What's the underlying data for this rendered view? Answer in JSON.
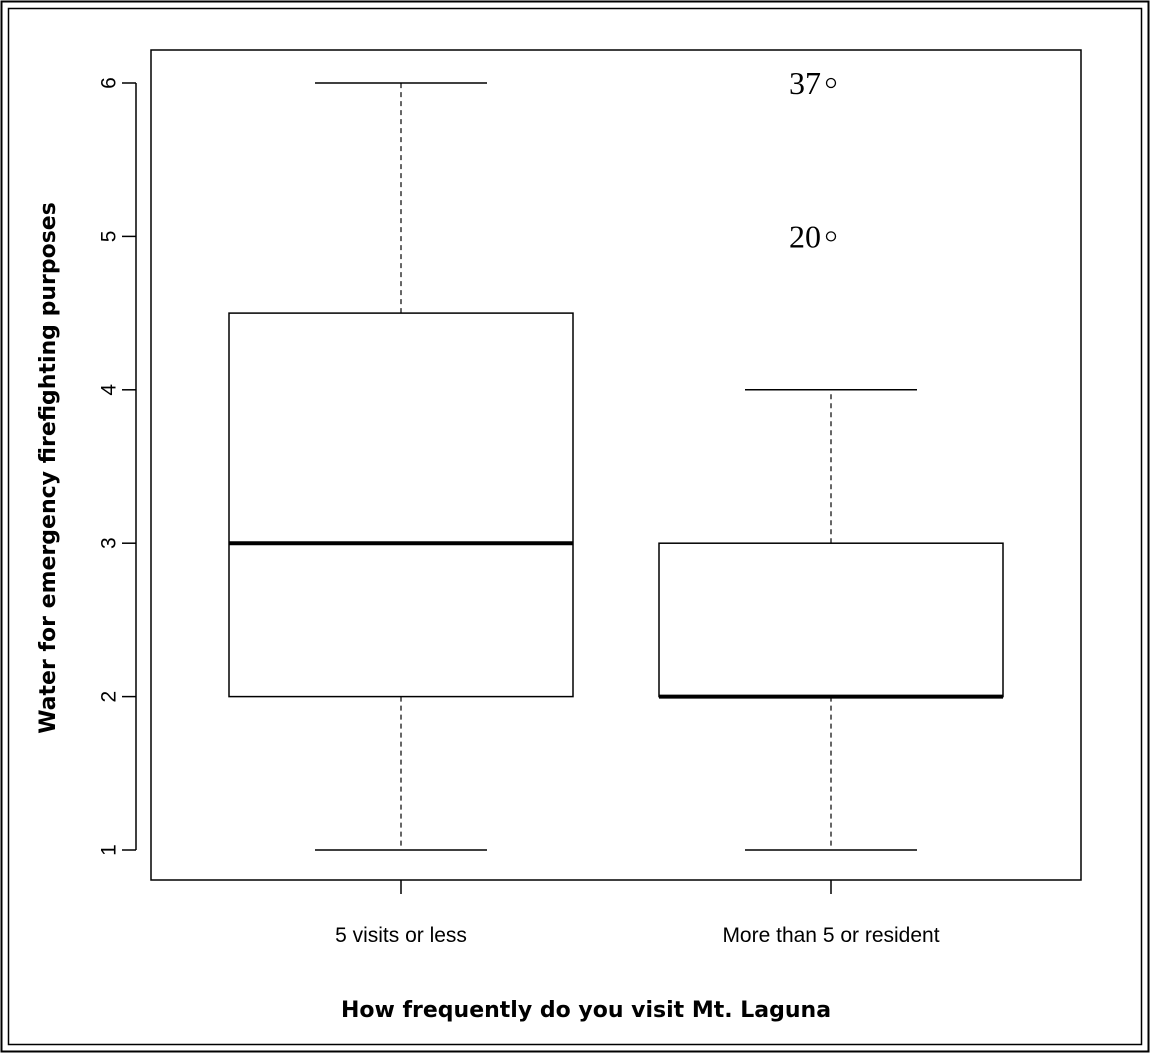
{
  "chart_data": {
    "type": "boxplot",
    "title": "",
    "xlabel": "How frequently do you visit Mt. Laguna",
    "ylabel": "Water for emergency firefighting purposes",
    "ylim": [
      0.8,
      6.3
    ],
    "yticks": [
      "1",
      "2",
      "3",
      "4",
      "5",
      "6"
    ],
    "grid": false,
    "categories": [
      "5 visits or less",
      "More than 5 or resident"
    ],
    "boxes": [
      {
        "category": "5 visits or less",
        "whisker_low": 1,
        "q1": 2,
        "median": 3,
        "q3": 4.5,
        "whisker_high": 6,
        "outliers": []
      },
      {
        "category": "More than 5 or resident",
        "whisker_low": 1,
        "q1": 2,
        "median": 2,
        "q3": 3,
        "whisker_high": 4,
        "outliers": [
          {
            "value": 6,
            "label": "37"
          },
          {
            "value": 5,
            "label": "20"
          }
        ]
      }
    ]
  }
}
